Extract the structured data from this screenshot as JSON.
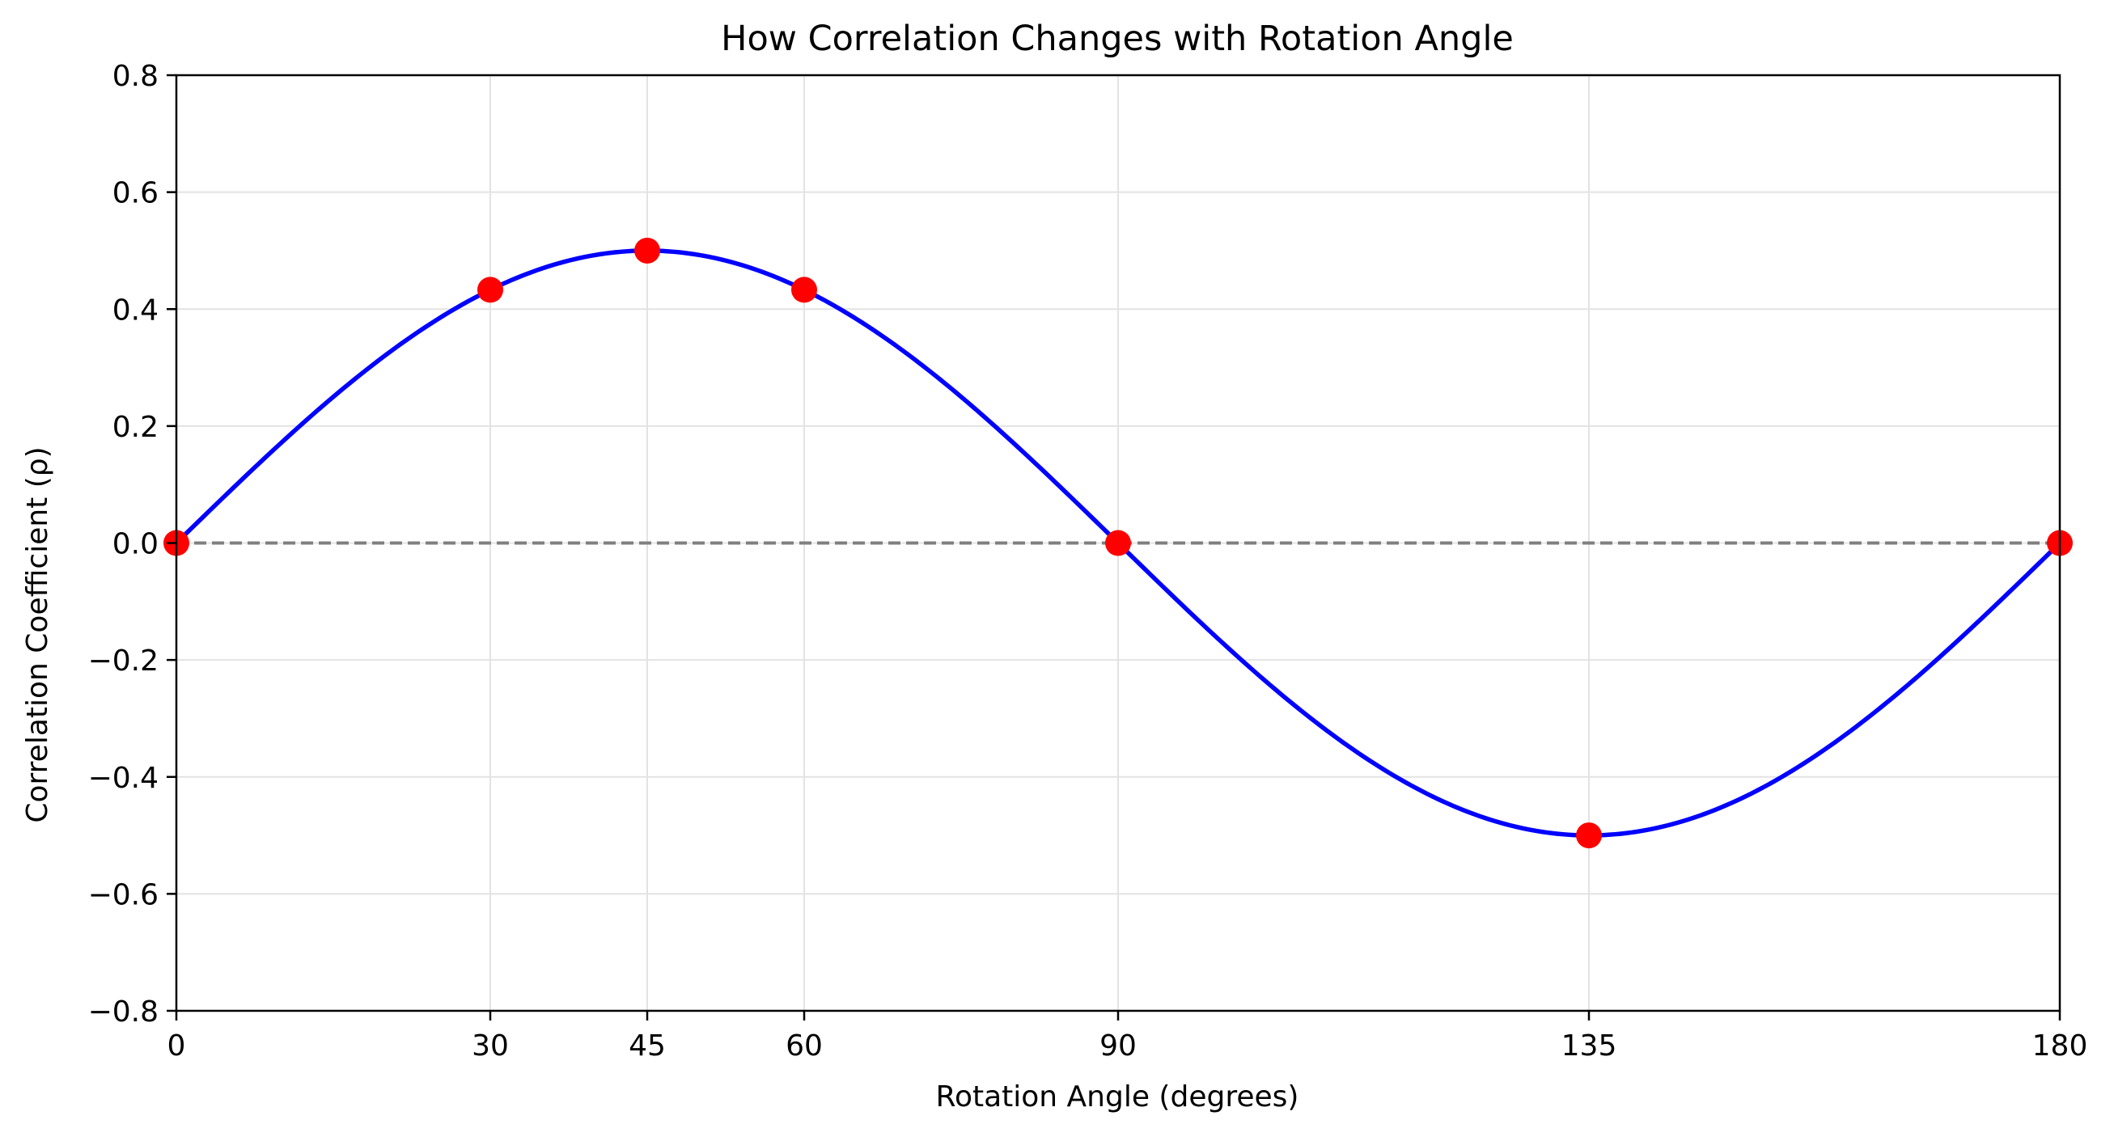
{
  "chart_data": {
    "type": "line",
    "title": "How Correlation Changes with Rotation Angle",
    "xlabel": "Rotation Angle (degrees)",
    "ylabel": "Correlation Coefficient (ρ)",
    "xlim": [
      0,
      180
    ],
    "ylim": [
      -0.8,
      0.8
    ],
    "xticks": [
      0,
      30,
      45,
      60,
      90,
      135,
      180
    ],
    "xtick_labels": [
      "0",
      "30",
      "45",
      "60",
      "90",
      "135",
      "180"
    ],
    "yticks": [
      -0.8,
      -0.6,
      -0.4,
      -0.2,
      0.0,
      0.2,
      0.4,
      0.6,
      0.8
    ],
    "ytick_labels": [
      "−0.8",
      "−0.6",
      "−0.4",
      "−0.2",
      "0.0",
      "0.2",
      "0.4",
      "0.6",
      "0.8"
    ],
    "grid": true,
    "series": [
      {
        "kind": "curve",
        "color": "#0000ff",
        "function": "0.5 * sin(2 * angle)",
        "x": [
          0,
          10,
          20,
          30,
          40,
          45,
          50,
          60,
          70,
          80,
          90,
          100,
          110,
          120,
          130,
          135,
          140,
          150,
          160,
          170,
          180
        ],
        "y": [
          0.0,
          0.171,
          0.321,
          0.433,
          0.492,
          0.5,
          0.492,
          0.433,
          0.321,
          0.171,
          0.0,
          -0.171,
          -0.321,
          -0.433,
          -0.492,
          -0.5,
          -0.492,
          -0.433,
          -0.321,
          -0.171,
          0.0
        ]
      },
      {
        "kind": "points",
        "color": "#ff0000",
        "x": [
          0,
          30,
          45,
          60,
          90,
          135,
          180
        ],
        "y": [
          0.0,
          0.433,
          0.5,
          0.433,
          0.0,
          -0.5,
          0.0
        ]
      }
    ],
    "reference_line": {
      "y": 0.0,
      "style": "dashed",
      "color": "#808080"
    }
  }
}
